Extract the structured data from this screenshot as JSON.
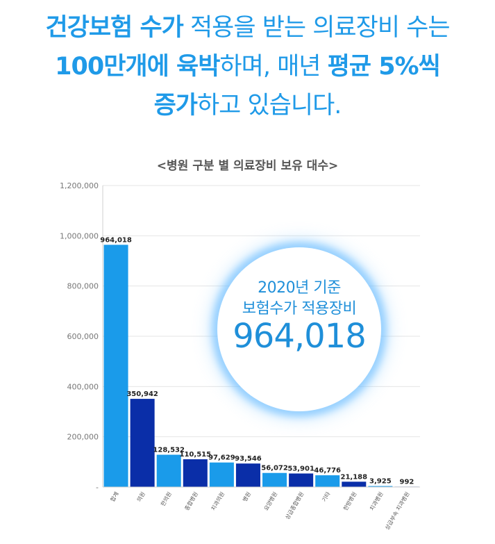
{
  "headline": {
    "line1": [
      {
        "text": "건강보험 수가",
        "bold": true
      },
      {
        "text": " 적용을 받는 의료장비 수는",
        "bold": false
      }
    ],
    "line2": [
      {
        "text": "100만개에 육박",
        "bold": true
      },
      {
        "text": "하며, 매년 ",
        "bold": false
      },
      {
        "text": "평균 5%씩",
        "bold": true
      }
    ],
    "line3": [
      {
        "text": "증가",
        "bold": true
      },
      {
        "text": "하고 있습니다.",
        "bold": false
      }
    ]
  },
  "badge": {
    "line1": "2020년 기준",
    "line2": "보험수가 적용장비",
    "value": "964,018"
  },
  "colors": {
    "headline": "#1f9ae8",
    "bar_light": "#1a9bea",
    "bar_dark": "#0a2ea8",
    "badge_glow": "#62b8ff"
  },
  "chart_data": {
    "type": "bar",
    "title": "<병원 구분 별 의료장비 보유 대수>",
    "xlabel": "",
    "ylabel": "",
    "ylim": [
      0,
      1200000
    ],
    "yticks": [
      0,
      200000,
      400000,
      600000,
      800000,
      1000000,
      1200000
    ],
    "ytick_labels": [
      "-",
      "200,000",
      "400,000",
      "600,000",
      "800,000",
      "1,000,000",
      "1,200,000"
    ],
    "grid": true,
    "categories": [
      "합계",
      "의원",
      "한의원",
      "종합병원",
      "치과의원",
      "병원",
      "요양병원",
      "상급종합병원",
      "기타",
      "한방병원",
      "치과병원",
      "상급부속 치과병원"
    ],
    "values": [
      964018,
      350942,
      128532,
      110515,
      97629,
      93546,
      56072,
      53901,
      46776,
      21188,
      3925,
      992
    ],
    "value_labels": [
      "964,018",
      "350,942",
      "128,532",
      "110,515",
      "97,629",
      "93,546",
      "56,072",
      "53,901",
      "46,776",
      "21,188",
      "3,925",
      "992"
    ],
    "bar_colors": [
      "light",
      "dark",
      "light",
      "dark",
      "light",
      "dark",
      "light",
      "dark",
      "light",
      "dark",
      "light",
      "dark"
    ]
  }
}
